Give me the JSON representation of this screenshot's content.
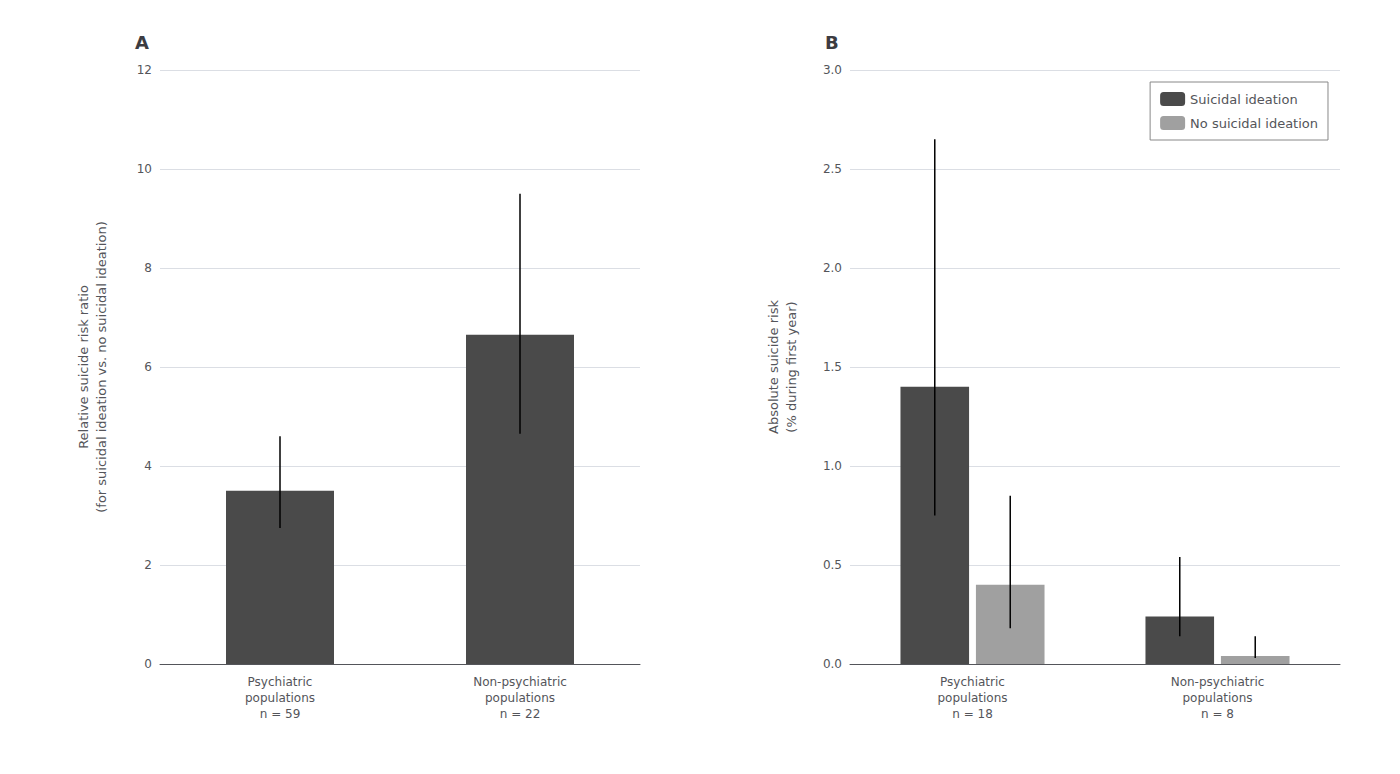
{
  "chart_data": [
    {
      "type": "bar",
      "title": "A",
      "categories": [
        "Psychiatric\npopulations\nn = 59",
        "Non-psychiatric\npopulations\nn = 22"
      ],
      "values": [
        3.5,
        6.65
      ],
      "err_low": [
        0.75,
        2.0
      ],
      "err_high": [
        1.1,
        2.85
      ],
      "color": "#4a4a4a",
      "ylabel": "Relative suicide risk ratio\n(for suicidal ideation vs. no suicidal ideation)",
      "ylim": [
        0,
        12
      ],
      "yticks": [
        0,
        2,
        4,
        6,
        8,
        10,
        12
      ],
      "grid": true
    },
    {
      "type": "bar",
      "title": "B",
      "categories": [
        "Psychiatric\npopulations\nn = 18",
        "Non-psychiatric\npopulations\nn = 8"
      ],
      "series": [
        {
          "name": "Suicidal ideation",
          "color": "#4a4a4a",
          "values": [
            1.4,
            0.24
          ],
          "err_low": [
            0.65,
            0.1
          ],
          "err_high": [
            1.25,
            0.3
          ]
        },
        {
          "name": "No suicidal ideation",
          "color": "#a0a0a0",
          "values": [
            0.4,
            0.04
          ],
          "err_low": [
            0.22,
            0.01
          ],
          "err_high": [
            0.45,
            0.1
          ]
        }
      ],
      "ylabel": "Absolute suicide risk\n(% during first year)",
      "ylim": [
        0,
        3.0
      ],
      "yticks": [
        {
          "value": 0,
          "label": "0.0"
        },
        0.5,
        {
          "value": 1,
          "label": "1.0"
        },
        1.5,
        {
          "value": 2,
          "label": "2.0"
        },
        2.5,
        {
          "value": 3,
          "label": "3.0"
        }
      ],
      "grid": true,
      "legend": "upper right"
    }
  ]
}
